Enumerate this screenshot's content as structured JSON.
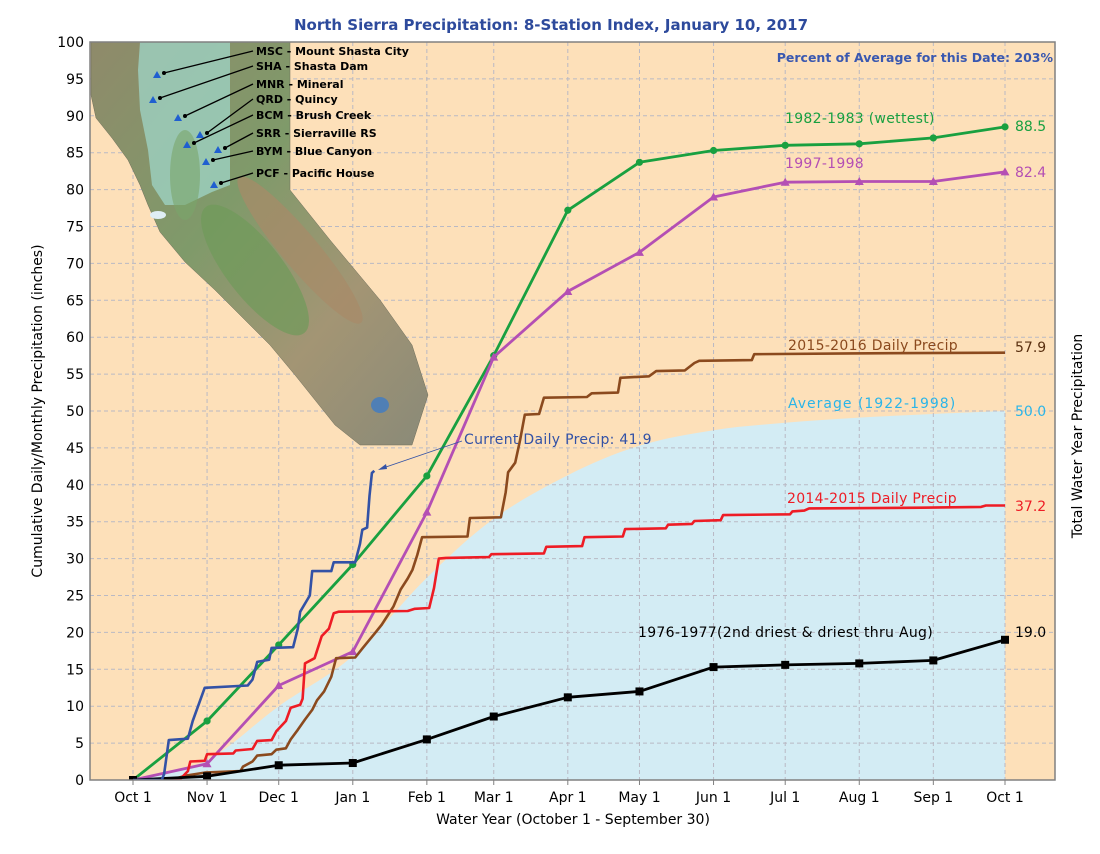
{
  "chart_data": {
    "type": "line",
    "title": "North Sierra Precipitation: 8-Station Index, January 10, 2017",
    "subtitle": "Percent of Average for this Date: 203%",
    "xlabel": "Water Year (October 1 - September 30)",
    "ylabel": "Cumulative Daily/Monthly Precipitation (inches)",
    "ylabel_right": "Total Water Year Precipitation",
    "ylim": [
      0,
      100
    ],
    "yticks": [
      0,
      5,
      10,
      15,
      20,
      25,
      30,
      35,
      40,
      45,
      50,
      55,
      60,
      65,
      70,
      75,
      80,
      85,
      90,
      95,
      100
    ],
    "grid": true,
    "x_unit": "day of water year (0 = Oct 1)",
    "xticks": [
      {
        "label": "Oct 1",
        "day": 0
      },
      {
        "label": "Nov 1",
        "day": 31
      },
      {
        "label": "Dec 1",
        "day": 61
      },
      {
        "label": "Jan 1",
        "day": 92
      },
      {
        "label": "Feb 1",
        "day": 123
      },
      {
        "label": "Mar 1",
        "day": 151
      },
      {
        "label": "Apr 1",
        "day": 182
      },
      {
        "label": "May 1",
        "day": 212
      },
      {
        "label": "Jun 1",
        "day": 243
      },
      {
        "label": "Jul 1",
        "day": 273
      },
      {
        "label": "Aug 1",
        "day": 304
      },
      {
        "label": "Sep 1",
        "day": 335
      },
      {
        "label": "Oct 1",
        "day": 365
      }
    ],
    "colors": {
      "plot_bg": "#fde0b9",
      "average_fill": "#d3ecf4",
      "title": "#2d4a9c",
      "grid": "#b9b9c4"
    },
    "series": [
      {
        "key": "average",
        "name": "Average (1922-1998)",
        "total": "50.0",
        "color": "#2bb5e8",
        "style": "area",
        "points": [
          [
            0,
            0
          ],
          [
            31,
            2.7
          ],
          [
            61,
            10
          ],
          [
            92,
            16.8
          ],
          [
            123,
            27.4
          ],
          [
            151,
            35.4
          ],
          [
            182,
            41.3
          ],
          [
            212,
            45.3
          ],
          [
            243,
            47.4
          ],
          [
            273,
            48.4
          ],
          [
            304,
            49.1
          ],
          [
            335,
            49.6
          ],
          [
            365,
            50.0
          ]
        ]
      },
      {
        "key": "wettest",
        "name": "1982-1983 (wettest)",
        "total": "88.5",
        "color": "#19a040",
        "style": "monthly",
        "marker": "circle",
        "points": [
          [
            0,
            0
          ],
          [
            31,
            8.0
          ],
          [
            61,
            18.3
          ],
          [
            92,
            29.2
          ],
          [
            123,
            41.2
          ],
          [
            151,
            57.5
          ],
          [
            182,
            77.2
          ],
          [
            212,
            83.7
          ],
          [
            243,
            85.3
          ],
          [
            273,
            86.0
          ],
          [
            304,
            86.2
          ],
          [
            335,
            87.0
          ],
          [
            365,
            88.5
          ]
        ]
      },
      {
        "key": "y9798",
        "name": "1997-1998",
        "total": "82.4",
        "color": "#b44fb4",
        "style": "monthly",
        "marker": "triangle",
        "points": [
          [
            0,
            0
          ],
          [
            31,
            2.2
          ],
          [
            61,
            12.8
          ],
          [
            92,
            17.4
          ],
          [
            123,
            36.3
          ],
          [
            151,
            57.3
          ],
          [
            182,
            66.2
          ],
          [
            212,
            71.5
          ],
          [
            243,
            79.0
          ],
          [
            273,
            81.0
          ],
          [
            304,
            81.1
          ],
          [
            335,
            81.1
          ],
          [
            365,
            82.4
          ]
        ]
      },
      {
        "key": "y1516",
        "name": "2015-2016 Daily Precip",
        "total": "57.9",
        "color": "#8b4a1e",
        "style": "daily",
        "points": [
          [
            0,
            0
          ],
          [
            18,
            0.2
          ],
          [
            22,
            0.6
          ],
          [
            30,
            1.0
          ],
          [
            45,
            1.2
          ],
          [
            46,
            1.8
          ],
          [
            50,
            2.5
          ],
          [
            52,
            3.3
          ],
          [
            58,
            3.5
          ],
          [
            60,
            4.1
          ],
          [
            64,
            4.3
          ],
          [
            66,
            5.5
          ],
          [
            69,
            6.8
          ],
          [
            72,
            8.2
          ],
          [
            75,
            9.5
          ],
          [
            77,
            10.8
          ],
          [
            80,
            12.0
          ],
          [
            83,
            14
          ],
          [
            85,
            16.5
          ],
          [
            93,
            16.6
          ],
          [
            96,
            17.8
          ],
          [
            98,
            18.6
          ],
          [
            101,
            19.8
          ],
          [
            104,
            21
          ],
          [
            107,
            22.5
          ],
          [
            109,
            23.5
          ],
          [
            112,
            25.8
          ],
          [
            115,
            27.3
          ],
          [
            117,
            28.5
          ],
          [
            119,
            30.5
          ],
          [
            121,
            32.9
          ],
          [
            140,
            33
          ],
          [
            141,
            35.5
          ],
          [
            154,
            35.6
          ],
          [
            156,
            39
          ],
          [
            157,
            41.7
          ],
          [
            160,
            43
          ],
          [
            162,
            46
          ],
          [
            164,
            49.5
          ],
          [
            170,
            49.6
          ],
          [
            172,
            51.8
          ],
          [
            190,
            51.9
          ],
          [
            192,
            52.4
          ],
          [
            203,
            52.5
          ],
          [
            204,
            54.5
          ],
          [
            216,
            54.7
          ],
          [
            219,
            55.4
          ],
          [
            231,
            55.5
          ],
          [
            235,
            56.5
          ],
          [
            237,
            56.8
          ],
          [
            259,
            56.9
          ],
          [
            260,
            57.7
          ],
          [
            300,
            57.8
          ],
          [
            365,
            57.9
          ]
        ]
      },
      {
        "key": "y1415",
        "name": "2014-2015 Daily Precip",
        "total": "37.2",
        "color": "#ee1c25",
        "style": "daily",
        "points": [
          [
            0,
            0
          ],
          [
            20,
            0.2
          ],
          [
            23,
            1.2
          ],
          [
            24,
            2.5
          ],
          [
            30,
            2.6
          ],
          [
            31,
            3.5
          ],
          [
            42,
            3.6
          ],
          [
            43,
            4.0
          ],
          [
            50,
            4.2
          ],
          [
            52,
            5.3
          ],
          [
            58,
            5.4
          ],
          [
            60,
            6.6
          ],
          [
            64,
            8
          ],
          [
            66,
            9.8
          ],
          [
            70,
            10.2
          ],
          [
            71,
            11
          ],
          [
            72,
            15.8
          ],
          [
            76,
            16.5
          ],
          [
            79,
            19.5
          ],
          [
            82,
            20.5
          ],
          [
            84,
            22.6
          ],
          [
            86,
            22.8
          ],
          [
            115,
            22.9
          ],
          [
            118,
            23.2
          ],
          [
            124,
            23.3
          ],
          [
            126,
            26
          ],
          [
            128,
            30.0
          ],
          [
            131,
            30.1
          ],
          [
            149,
            30.2
          ],
          [
            150,
            30.6
          ],
          [
            172,
            30.7
          ],
          [
            173,
            31.6
          ],
          [
            188,
            31.7
          ],
          [
            189,
            32.9
          ],
          [
            205,
            33
          ],
          [
            206,
            34
          ],
          [
            223,
            34.1
          ],
          [
            224,
            34.6
          ],
          [
            234,
            34.7
          ],
          [
            235,
            35.1
          ],
          [
            246,
            35.2
          ],
          [
            247,
            35.9
          ],
          [
            275,
            36
          ],
          [
            276,
            36.4
          ],
          [
            281,
            36.5
          ],
          [
            283,
            36.8
          ],
          [
            330,
            36.9
          ],
          [
            355,
            37.0
          ],
          [
            357,
            37.2
          ],
          [
            365,
            37.2
          ]
        ]
      },
      {
        "key": "y7677",
        "name": "1976-1977(2nd driest & driest thru Aug)",
        "total": "19.0",
        "color": "#000000",
        "style": "monthly",
        "marker": "square",
        "points": [
          [
            0,
            0
          ],
          [
            31,
            0.5
          ],
          [
            61,
            2.0
          ],
          [
            92,
            2.3
          ],
          [
            123,
            5.5
          ],
          [
            151,
            8.6
          ],
          [
            182,
            11.2
          ],
          [
            212,
            12.0
          ],
          [
            243,
            15.3
          ],
          [
            273,
            15.6
          ],
          [
            304,
            15.8
          ],
          [
            335,
            16.2
          ],
          [
            365,
            19.0
          ]
        ]
      },
      {
        "key": "current",
        "name": "Current Daily Precip: 41.9",
        "color": "#3352a6",
        "style": "daily",
        "points": [
          [
            0,
            0
          ],
          [
            12,
            0
          ],
          [
            13,
            0.8
          ],
          [
            15,
            5.4
          ],
          [
            23,
            5.6
          ],
          [
            25,
            8
          ],
          [
            30,
            12.5
          ],
          [
            48,
            12.8
          ],
          [
            50,
            13.6
          ],
          [
            52,
            16.0
          ],
          [
            57,
            16.3
          ],
          [
            58,
            17.9
          ],
          [
            67,
            18
          ],
          [
            69,
            20.5
          ],
          [
            70,
            22.8
          ],
          [
            74,
            25
          ],
          [
            75,
            28.3
          ],
          [
            83,
            28.3
          ],
          [
            84,
            29.5
          ],
          [
            93,
            29.5
          ],
          [
            95,
            32
          ],
          [
            96,
            33.9
          ],
          [
            98,
            34.2
          ],
          [
            99,
            38.5
          ],
          [
            100,
            41.6
          ],
          [
            101,
            41.9
          ]
        ]
      }
    ]
  },
  "map": {
    "stations": [
      {
        "code": "MSC",
        "label": "MSC - Mount Shasta City"
      },
      {
        "code": "SHA",
        "label": "SHA - Shasta Dam"
      },
      {
        "code": "MNR",
        "label": "MNR - Mineral"
      },
      {
        "code": "QRD",
        "label": "QRD - Quincy"
      },
      {
        "code": "BCM",
        "label": "BCM - Brush Creek"
      },
      {
        "code": "SRR",
        "label": "SRR - Sierraville RS"
      },
      {
        "code": "BYM",
        "label": "BYM - Blue Canyon"
      },
      {
        "code": "PCF",
        "label": "PCF - Pacific House"
      }
    ]
  }
}
